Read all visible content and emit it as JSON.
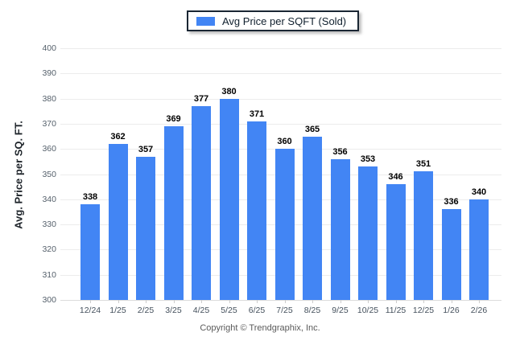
{
  "legend": {
    "label": "Avg Price per SQFT (Sold)",
    "swatch_color": "#4285F4"
  },
  "axes": {
    "y_title": "Avg. Price per SQ. FT.",
    "y_ticks": [
      300,
      310,
      320,
      330,
      340,
      350,
      360,
      370,
      380,
      390,
      400
    ]
  },
  "footer": {
    "copyright": "Copyright © Trendgraphix, Inc."
  },
  "chart_data": {
    "type": "bar",
    "title": "Avg Price per SQFT (Sold)",
    "xlabel": "",
    "ylabel": "Avg. Price per SQ. FT.",
    "ylim": [
      300,
      400
    ],
    "grid": true,
    "legend_position": "top-center",
    "bar_color": "#4285F4",
    "categories": [
      "12/24",
      "1/25",
      "2/25",
      "3/25",
      "4/25",
      "5/25",
      "6/25",
      "7/25",
      "8/25",
      "9/25",
      "10/25",
      "11/25",
      "12/25",
      "1/26",
      "2/26"
    ],
    "values": [
      338,
      362,
      357,
      369,
      377,
      380,
      371,
      360,
      365,
      356,
      353,
      346,
      351,
      336,
      340
    ]
  }
}
